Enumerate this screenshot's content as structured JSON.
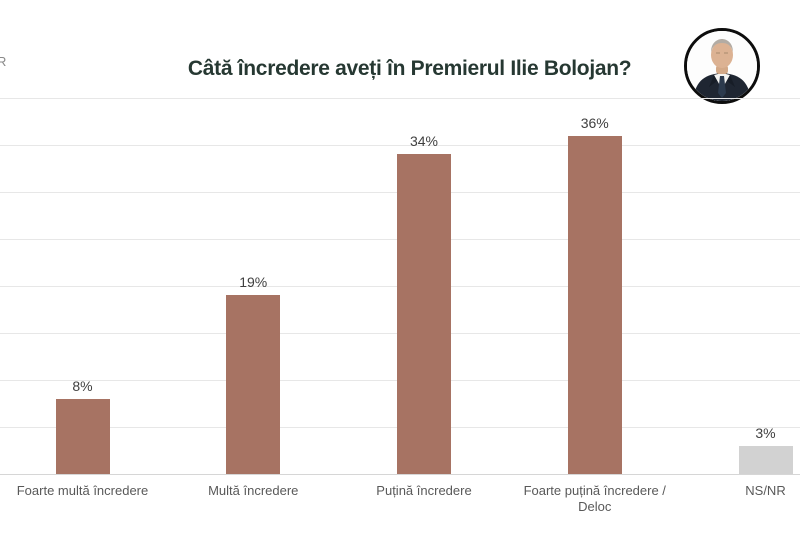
{
  "header": {
    "title": "Câtă încredere aveți în Premierul Ilie Bolojan?",
    "watermark": "R",
    "avatar": "portrait-of-prime-minister"
  },
  "colors": {
    "title_text": "#263832",
    "bar_brown": "#a77363",
    "bar_gray": "#d2d2d2",
    "value_label": "#3f3f3f",
    "axis_label": "#595959",
    "gridline": "#e7e7e7"
  },
  "chart_data": {
    "type": "bar",
    "title": "Câtă încredere aveți în Premierul Ilie Bolojan?",
    "categories": [
      "Foarte multă încredere",
      "Multă încredere",
      "Puțină încredere",
      "Foarte puțină încredere / Deloc",
      "NS/NR"
    ],
    "values": [
      8,
      19,
      34,
      36,
      3
    ],
    "value_labels": [
      "8%",
      "19%",
      "34%",
      "36%",
      "3%"
    ],
    "bar_colors": [
      "#a77363",
      "#a77363",
      "#a77363",
      "#a77363",
      "#d2d2d2"
    ],
    "xlabel": "",
    "ylabel": "",
    "ylim": [
      0,
      40
    ],
    "gridline_step": 5,
    "grid": "on",
    "legend": "none",
    "data_labels": "above-bars"
  }
}
